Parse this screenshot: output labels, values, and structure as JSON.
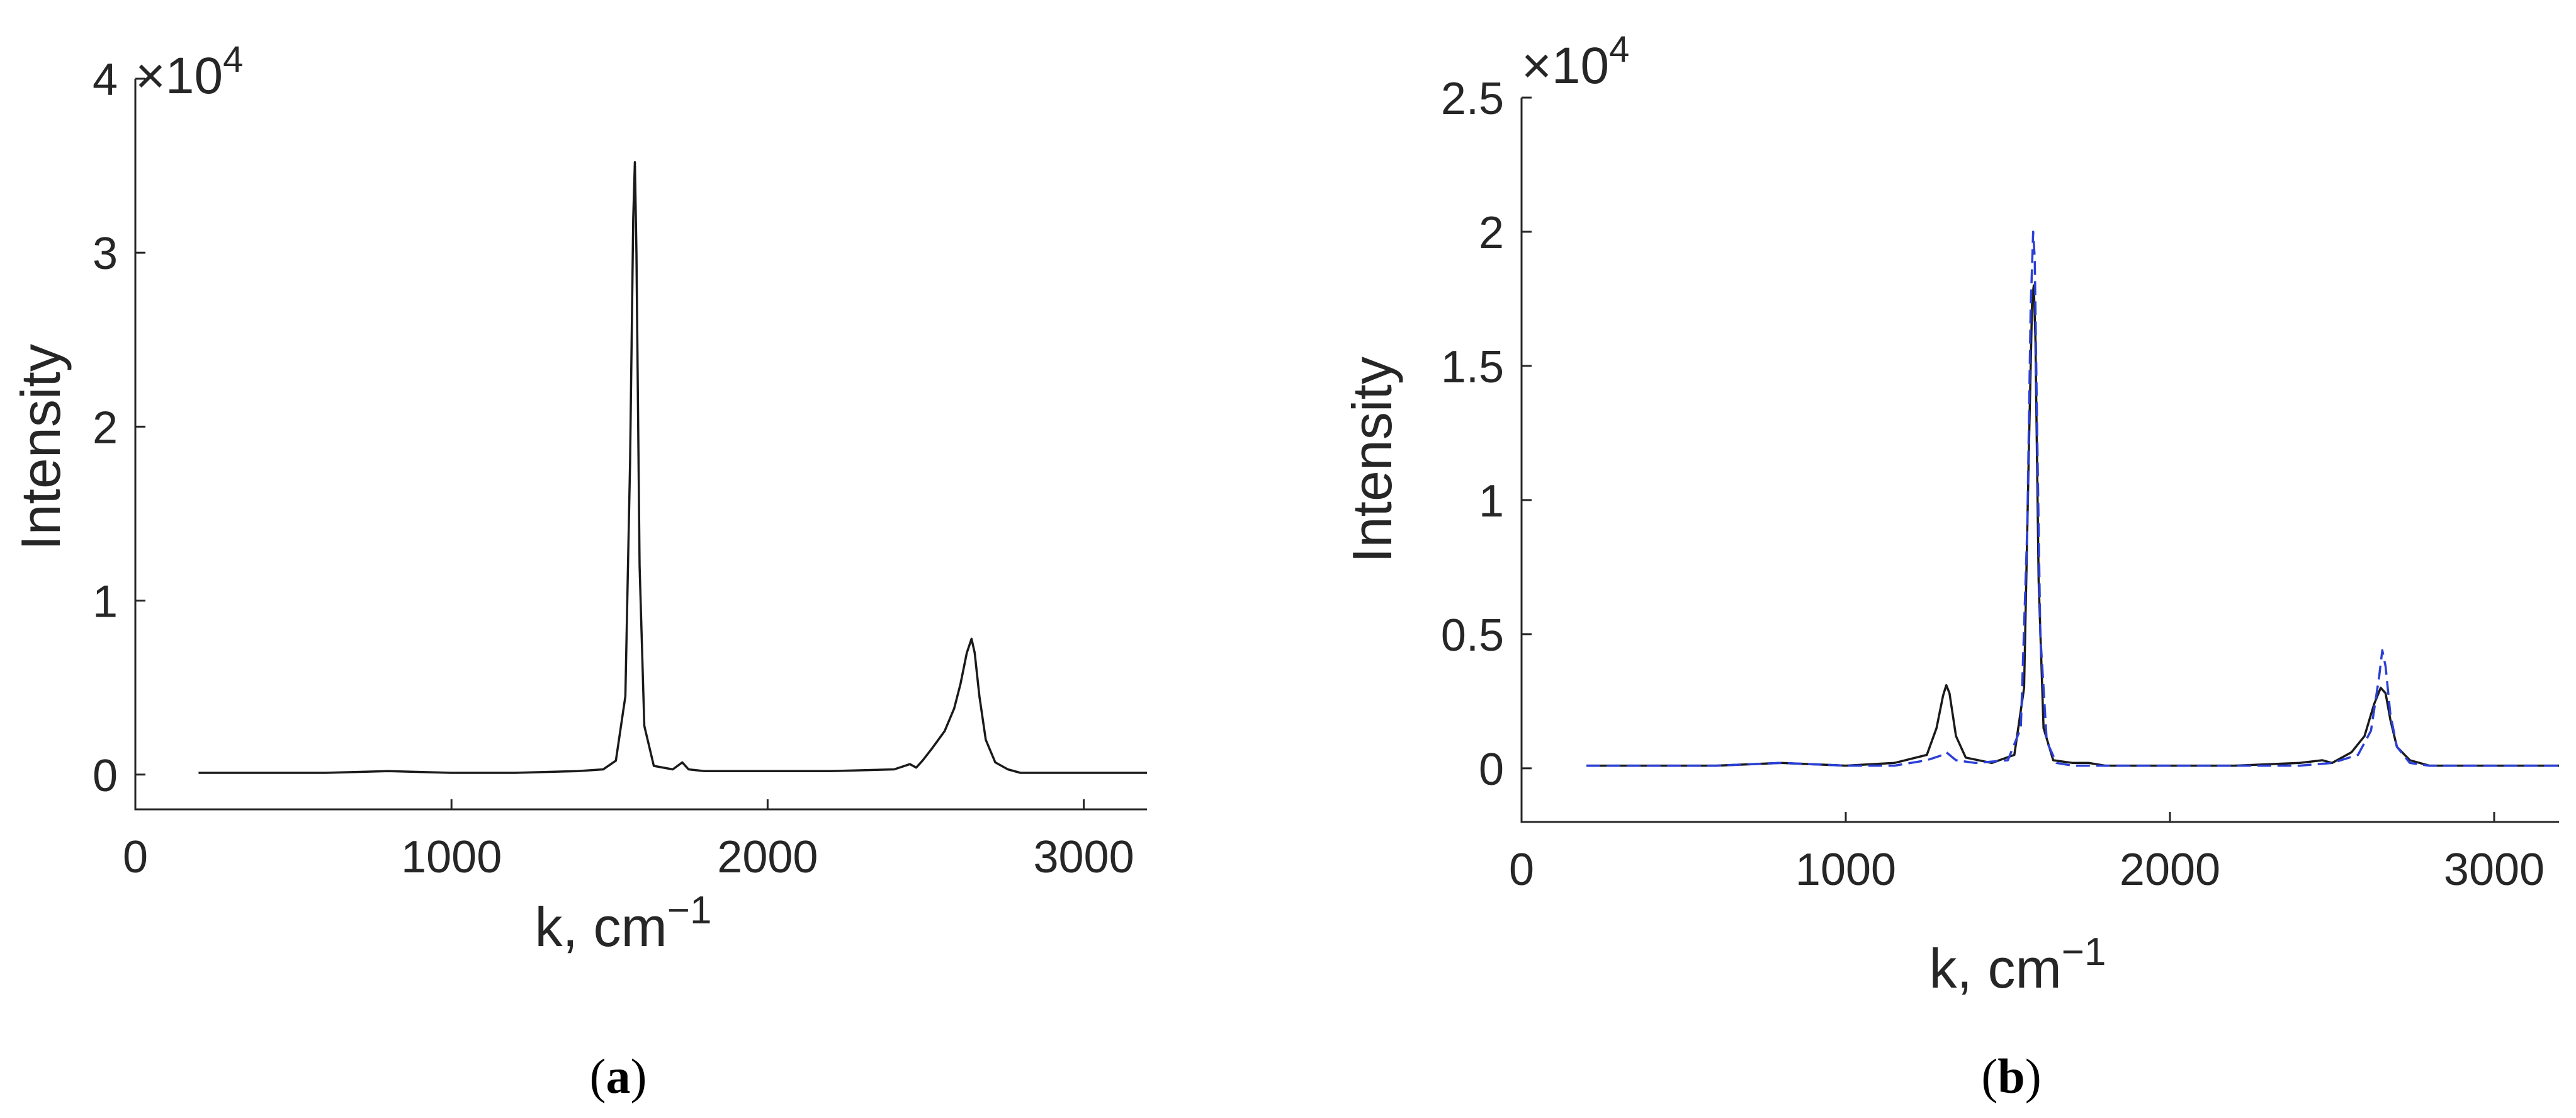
{
  "panels": [
    {
      "caption_letter": "a",
      "ylabel": "Intensity",
      "xlabel_main": "k, cm",
      "xlabel_sup": "−1",
      "exponent_times": "×10",
      "exponent_power": "4",
      "xticks": [
        "0",
        "1000",
        "2000",
        "3000"
      ],
      "yticks": [
        "0",
        "1",
        "2",
        "3",
        "4"
      ]
    },
    {
      "caption_letter": "b",
      "ylabel": "Intensity",
      "xlabel_main": "k, cm",
      "xlabel_sup": "−1",
      "exponent_times": "×10",
      "exponent_power": "4",
      "xticks": [
        "0",
        "1000",
        "2000",
        "3000"
      ],
      "yticks": [
        "0",
        "0.5",
        "1",
        "1.5",
        "2",
        "2.5"
      ]
    }
  ],
  "chart_data": [
    {
      "type": "line",
      "title": "",
      "xlabel": "k, cm−1",
      "ylabel": "Intensity",
      "y_multiplier": 10000,
      "xlim": [
        0,
        3200
      ],
      "ylim": [
        -0.2,
        4
      ],
      "xticks": [
        0,
        1000,
        2000,
        3000
      ],
      "yticks": [
        0,
        1,
        2,
        3,
        4
      ],
      "grid": false,
      "series": [
        {
          "color": "#1a1a1a",
          "dash": "solid",
          "x": [
            200,
            400,
            600,
            800,
            1000,
            1200,
            1400,
            1480,
            1520,
            1550,
            1565,
            1575,
            1580,
            1585,
            1595,
            1610,
            1640,
            1700,
            1730,
            1750,
            1800,
            2000,
            2200,
            2400,
            2450,
            2470,
            2490,
            2520,
            2560,
            2590,
            2610,
            2630,
            2645,
            2655,
            2670,
            2690,
            2720,
            2760,
            2800,
            3000,
            3200
          ],
          "y": [
            0.01,
            0.01,
            0.01,
            0.02,
            0.01,
            0.01,
            0.02,
            0.03,
            0.08,
            0.45,
            1.8,
            3.2,
            3.52,
            3.0,
            1.2,
            0.28,
            0.05,
            0.03,
            0.07,
            0.03,
            0.02,
            0.02,
            0.02,
            0.03,
            0.06,
            0.04,
            0.08,
            0.15,
            0.25,
            0.38,
            0.52,
            0.7,
            0.78,
            0.7,
            0.45,
            0.2,
            0.07,
            0.03,
            0.01,
            0.01,
            0.01
          ]
        }
      ]
    },
    {
      "type": "line",
      "title": "",
      "xlabel": "k, cm−1",
      "ylabel": "Intensity",
      "y_multiplier": 10000,
      "xlim": [
        0,
        3200
      ],
      "ylim": [
        -0.2,
        2.5
      ],
      "xticks": [
        0,
        1000,
        2000,
        3000
      ],
      "yticks": [
        0,
        0.5,
        1,
        1.5,
        2,
        2.5
      ],
      "grid": false,
      "series": [
        {
          "color": "#1a1a1a",
          "dash": "solid",
          "x": [
            200,
            400,
            600,
            800,
            1000,
            1150,
            1250,
            1280,
            1300,
            1310,
            1320,
            1340,
            1370,
            1450,
            1520,
            1550,
            1565,
            1575,
            1580,
            1585,
            1595,
            1610,
            1640,
            1700,
            1750,
            1800,
            2000,
            2200,
            2400,
            2470,
            2500,
            2560,
            2600,
            2630,
            2650,
            2665,
            2680,
            2700,
            2740,
            2800,
            3000,
            3200
          ],
          "y": [
            0.01,
            0.01,
            0.01,
            0.02,
            0.01,
            0.02,
            0.05,
            0.15,
            0.27,
            0.31,
            0.28,
            0.12,
            0.04,
            0.02,
            0.05,
            0.3,
            1.2,
            1.75,
            1.8,
            1.6,
            0.7,
            0.15,
            0.03,
            0.02,
            0.02,
            0.01,
            0.01,
            0.01,
            0.02,
            0.03,
            0.02,
            0.06,
            0.12,
            0.24,
            0.3,
            0.28,
            0.18,
            0.08,
            0.03,
            0.01,
            0.01,
            0.01
          ]
        },
        {
          "color": "#2b3fd6",
          "dash": "dashed",
          "x": [
            200,
            400,
            600,
            800,
            1000,
            1150,
            1250,
            1300,
            1310,
            1320,
            1340,
            1400,
            1500,
            1540,
            1560,
            1570,
            1578,
            1583,
            1590,
            1600,
            1620,
            1650,
            1700,
            1800,
            2000,
            2200,
            2400,
            2500,
            2580,
            2620,
            2645,
            2655,
            2665,
            2680,
            2700,
            2740,
            2800,
            3000,
            3200
          ],
          "y": [
            0.01,
            0.01,
            0.01,
            0.02,
            0.01,
            0.01,
            0.03,
            0.05,
            0.06,
            0.05,
            0.03,
            0.02,
            0.03,
            0.15,
            0.9,
            1.7,
            2.0,
            1.9,
            1.3,
            0.5,
            0.1,
            0.02,
            0.01,
            0.01,
            0.01,
            0.01,
            0.01,
            0.02,
            0.05,
            0.14,
            0.34,
            0.44,
            0.38,
            0.2,
            0.08,
            0.02,
            0.01,
            0.01,
            0.01
          ]
        }
      ]
    }
  ]
}
